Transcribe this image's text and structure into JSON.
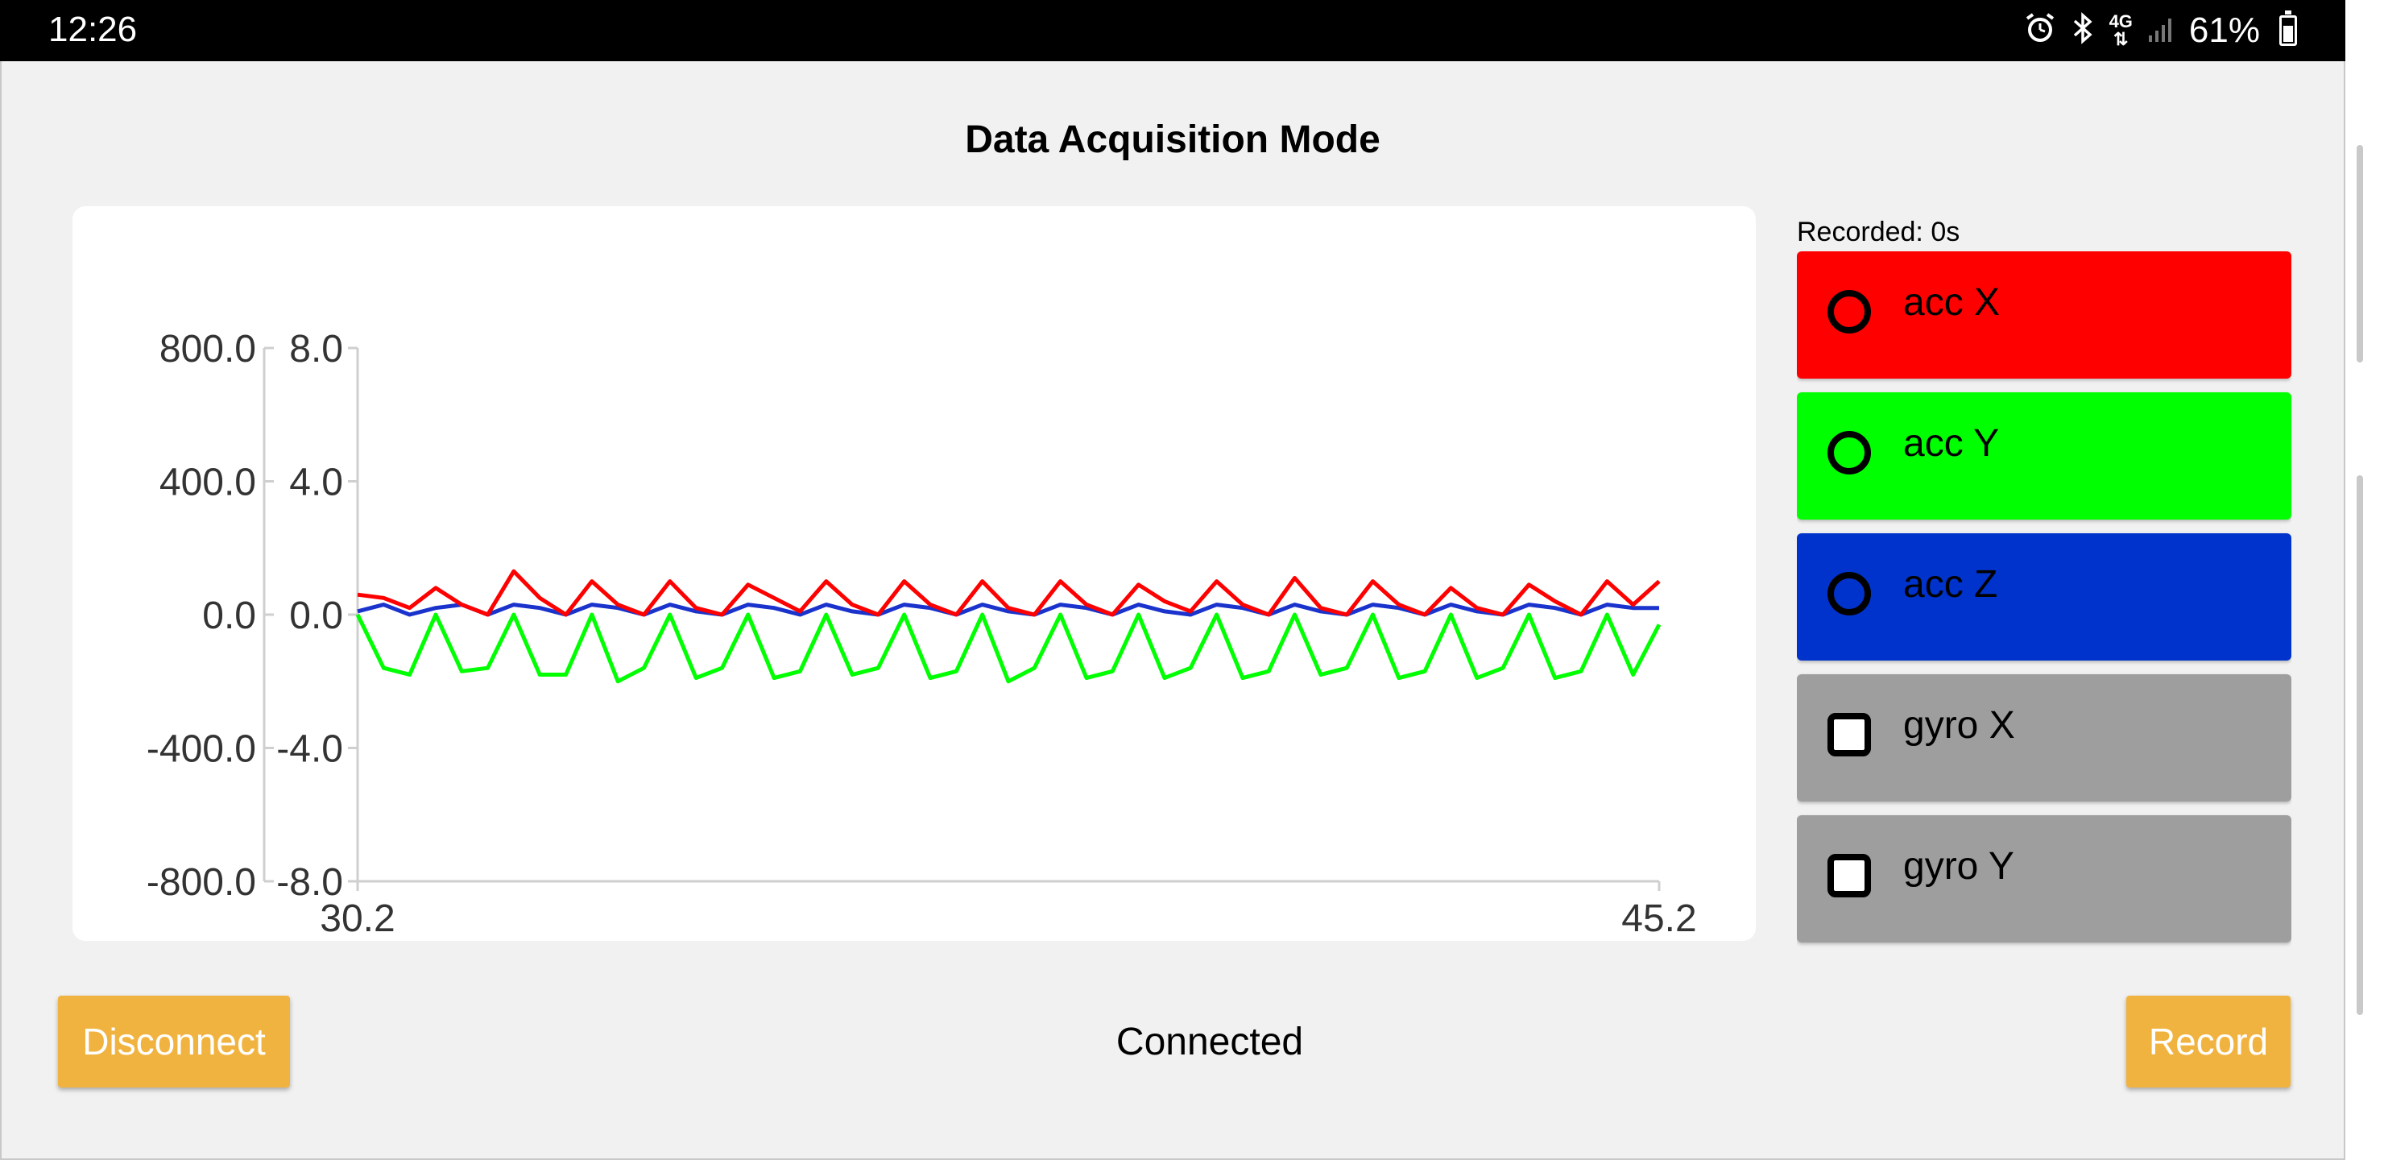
{
  "statusbar": {
    "time": "12:26",
    "alarm_icon": "alarm-clock-icon",
    "bluetooth_icon": "bluetooth-icon",
    "network_label": "4G",
    "signal_icon": "signal-bars-icon",
    "battery_text": "61%",
    "battery_level": 0.61
  },
  "page": {
    "title": "Data Acquisition Mode"
  },
  "recorder": {
    "recorded_label": "Recorded: 0s"
  },
  "channels": [
    {
      "label": "acc X",
      "color": "#ff0000",
      "marker": "radio",
      "marker_icon": "radio-circle-icon"
    },
    {
      "label": "acc Y",
      "color": "#00ff00",
      "marker": "radio",
      "marker_icon": "radio-circle-icon"
    },
    {
      "label": "acc Z",
      "color": "#0033cc",
      "marker": "radio",
      "marker_icon": "radio-circle-icon"
    },
    {
      "label": "gyro X",
      "color": "#9e9e9e",
      "marker": "checkbox",
      "marker_icon": "checkbox-icon"
    },
    {
      "label": "gyro Y",
      "color": "#9e9e9e",
      "marker": "checkbox",
      "marker_icon": "checkbox-icon"
    }
  ],
  "footer": {
    "disconnect_label": "Disconnect",
    "status_text": "Connected",
    "record_label": "Record",
    "button_color": "#f1b33f"
  },
  "chart_data": {
    "type": "line",
    "title": "",
    "xlabel": "",
    "ylabel": "",
    "xlim": [
      30.2,
      45.2
    ],
    "x_ticks": [
      "30.2",
      "45.2"
    ],
    "y_left_ticks": [
      "800.0",
      "400.0",
      "0.0",
      "-400.0",
      "-800.0"
    ],
    "y_right_ticks": [
      "8.0",
      "4.0",
      "0.0",
      "-4.0",
      "-8.0"
    ],
    "ylim_left": [
      -800,
      800
    ],
    "ylim_right": [
      -8,
      8
    ],
    "grid": false,
    "legend": "none",
    "series": [
      {
        "color": "#ff0000",
        "x": [
          30.2,
          30.5,
          30.8,
          31.1,
          31.4,
          31.7,
          32.0,
          32.3,
          32.6,
          32.9,
          33.2,
          33.5,
          33.8,
          34.1,
          34.4,
          34.7,
          35.0,
          35.3,
          35.6,
          35.9,
          36.2,
          36.5,
          36.8,
          37.1,
          37.4,
          37.7,
          38.0,
          38.3,
          38.6,
          38.9,
          39.2,
          39.5,
          39.8,
          40.1,
          40.4,
          40.7,
          41.0,
          41.3,
          41.6,
          41.9,
          42.2,
          42.5,
          42.8,
          43.1,
          43.4,
          43.7,
          44.0,
          44.3,
          44.6,
          44.9,
          45.2
        ],
        "y": [
          0.6,
          0.5,
          0.2,
          0.8,
          0.3,
          0.0,
          1.3,
          0.5,
          0.0,
          1.0,
          0.3,
          0.0,
          1.0,
          0.2,
          0.0,
          0.9,
          0.5,
          0.1,
          1.0,
          0.3,
          0.0,
          1.0,
          0.3,
          0.0,
          1.0,
          0.2,
          0.0,
          1.0,
          0.3,
          0.0,
          0.9,
          0.4,
          0.1,
          1.0,
          0.3,
          0.0,
          1.1,
          0.2,
          0.0,
          1.0,
          0.3,
          0.0,
          0.8,
          0.2,
          0.0,
          0.9,
          0.4,
          0.0,
          1.0,
          0.3,
          1.0
        ]
      },
      {
        "color": "#00ff00",
        "x": [
          30.2,
          30.5,
          30.8,
          31.1,
          31.4,
          31.7,
          32.0,
          32.3,
          32.6,
          32.9,
          33.2,
          33.5,
          33.8,
          34.1,
          34.4,
          34.7,
          35.0,
          35.3,
          35.6,
          35.9,
          36.2,
          36.5,
          36.8,
          37.1,
          37.4,
          37.7,
          38.0,
          38.3,
          38.6,
          38.9,
          39.2,
          39.5,
          39.8,
          40.1,
          40.4,
          40.7,
          41.0,
          41.3,
          41.6,
          41.9,
          42.2,
          42.5,
          42.8,
          43.1,
          43.4,
          43.7,
          44.0,
          44.3,
          44.6,
          44.9,
          45.2
        ],
        "y": [
          0.0,
          -1.6,
          -1.8,
          0.0,
          -1.7,
          -1.6,
          0.0,
          -1.8,
          -1.8,
          0.0,
          -2.0,
          -1.6,
          0.0,
          -1.9,
          -1.6,
          0.0,
          -1.9,
          -1.7,
          0.0,
          -1.8,
          -1.6,
          0.0,
          -1.9,
          -1.7,
          0.0,
          -2.0,
          -1.6,
          0.0,
          -1.9,
          -1.7,
          0.0,
          -1.9,
          -1.6,
          0.0,
          -1.9,
          -1.7,
          0.0,
          -1.8,
          -1.6,
          0.0,
          -1.9,
          -1.7,
          0.0,
          -1.9,
          -1.6,
          0.0,
          -1.9,
          -1.7,
          0.0,
          -1.8,
          -0.3
        ]
      },
      {
        "color": "#1a33cc",
        "x": [
          30.2,
          30.5,
          30.8,
          31.1,
          31.4,
          31.7,
          32.0,
          32.3,
          32.6,
          32.9,
          33.2,
          33.5,
          33.8,
          34.1,
          34.4,
          34.7,
          35.0,
          35.3,
          35.6,
          35.9,
          36.2,
          36.5,
          36.8,
          37.1,
          37.4,
          37.7,
          38.0,
          38.3,
          38.6,
          38.9,
          39.2,
          39.5,
          39.8,
          40.1,
          40.4,
          40.7,
          41.0,
          41.3,
          41.6,
          41.9,
          42.2,
          42.5,
          42.8,
          43.1,
          43.4,
          43.7,
          44.0,
          44.3,
          44.6,
          44.9,
          45.2
        ],
        "y": [
          0.1,
          0.3,
          0.0,
          0.2,
          0.3,
          0.0,
          0.3,
          0.2,
          0.0,
          0.3,
          0.2,
          0.0,
          0.3,
          0.1,
          0.0,
          0.3,
          0.2,
          0.0,
          0.3,
          0.1,
          0.0,
          0.3,
          0.2,
          0.0,
          0.3,
          0.1,
          0.0,
          0.3,
          0.2,
          0.0,
          0.3,
          0.1,
          0.0,
          0.3,
          0.2,
          0.0,
          0.3,
          0.1,
          0.0,
          0.3,
          0.2,
          0.0,
          0.3,
          0.1,
          0.0,
          0.3,
          0.2,
          0.0,
          0.3,
          0.2,
          0.2
        ]
      }
    ]
  }
}
